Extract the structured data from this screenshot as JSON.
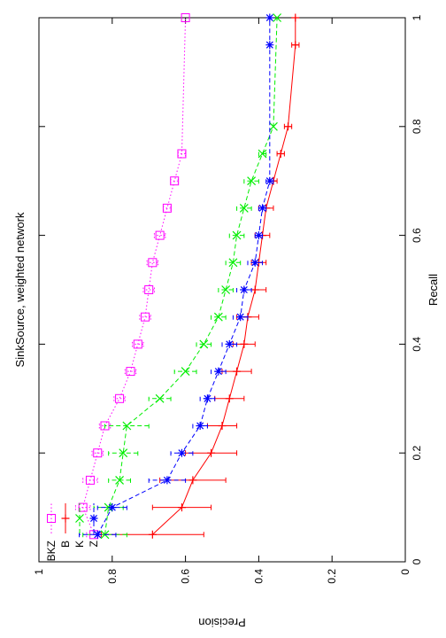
{
  "chart_data": {
    "type": "line",
    "title": "SinkSource, weighted network",
    "xlabel": "Recall",
    "ylabel": "Precision",
    "xlim": [
      0,
      1
    ],
    "ylim": [
      0,
      1
    ],
    "x_ticks": [
      "0",
      "0.2",
      "0.4",
      "0.6",
      "0.8",
      "1"
    ],
    "y_ticks": [
      "0",
      "0.2",
      "0.4",
      "0.6",
      "0.8",
      "1"
    ],
    "grid": false,
    "legend_position": "top-left",
    "orientation": "rotated-90-counterclockwise",
    "series": [
      {
        "name": "BKZ",
        "color": "#ff00ff",
        "dash": "dotted",
        "marker": "square",
        "x": [
          0.05,
          0.1,
          0.15,
          0.2,
          0.25,
          0.3,
          0.35,
          0.4,
          0.45,
          0.5,
          0.55,
          0.6,
          0.65,
          0.7,
          0.75,
          1.0
        ],
        "y": [
          0.85,
          0.88,
          0.86,
          0.84,
          0.82,
          0.78,
          0.75,
          0.73,
          0.71,
          0.7,
          0.69,
          0.67,
          0.65,
          0.63,
          0.61,
          0.6
        ],
        "err": [
          0.02,
          0.02,
          0.02,
          0.015,
          0.015,
          0.015,
          0.015,
          0.015,
          0.015,
          0.015,
          0.015,
          0.015,
          0.01,
          0.01,
          0.01,
          0.0
        ]
      },
      {
        "name": "B",
        "color": "#ff0000",
        "dash": "solid",
        "marker": "plus",
        "x": [
          0.05,
          0.1,
          0.15,
          0.2,
          0.25,
          0.3,
          0.35,
          0.4,
          0.45,
          0.5,
          0.55,
          0.6,
          0.65,
          0.7,
          0.75,
          0.8,
          0.95,
          1.0
        ],
        "y": [
          0.69,
          0.61,
          0.58,
          0.53,
          0.5,
          0.48,
          0.46,
          0.44,
          0.43,
          0.41,
          0.4,
          0.39,
          0.38,
          0.36,
          0.34,
          0.32,
          0.3,
          0.3
        ],
        "err": [
          0.14,
          0.08,
          0.09,
          0.07,
          0.04,
          0.04,
          0.04,
          0.03,
          0.03,
          0.03,
          0.02,
          0.02,
          0.02,
          0.01,
          0.01,
          0.01,
          0.01,
          0.0
        ]
      },
      {
        "name": "K",
        "color": "#00ee00",
        "dash": "dashed",
        "marker": "cross",
        "x": [
          0.05,
          0.1,
          0.15,
          0.2,
          0.25,
          0.3,
          0.35,
          0.4,
          0.45,
          0.5,
          0.55,
          0.6,
          0.65,
          0.7,
          0.75,
          0.8,
          1.0
        ],
        "y": [
          0.82,
          0.81,
          0.78,
          0.77,
          0.76,
          0.67,
          0.6,
          0.55,
          0.51,
          0.49,
          0.47,
          0.46,
          0.44,
          0.42,
          0.39,
          0.36,
          0.35
        ],
        "err": [
          0.06,
          0.04,
          0.03,
          0.04,
          0.06,
          0.03,
          0.03,
          0.02,
          0.02,
          0.02,
          0.02,
          0.02,
          0.02,
          0.02,
          0.01,
          0.0,
          0.0
        ]
      },
      {
        "name": "Z",
        "color": "#0000ff",
        "dash": "dashed",
        "marker": "star",
        "x": [
          0.05,
          0.1,
          0.15,
          0.2,
          0.25,
          0.3,
          0.35,
          0.4,
          0.45,
          0.5,
          0.55,
          0.6,
          0.65,
          0.7,
          0.95,
          1.0
        ],
        "y": [
          0.84,
          0.8,
          0.65,
          0.61,
          0.56,
          0.54,
          0.51,
          0.48,
          0.45,
          0.44,
          0.41,
          0.4,
          0.39,
          0.37,
          0.37,
          0.37
        ],
        "err": [
          0.05,
          0.04,
          0.05,
          0.03,
          0.02,
          0.02,
          0.02,
          0.02,
          0.02,
          0.02,
          0.02,
          0.01,
          0.01,
          0.01,
          0.0,
          0.0
        ]
      }
    ]
  }
}
